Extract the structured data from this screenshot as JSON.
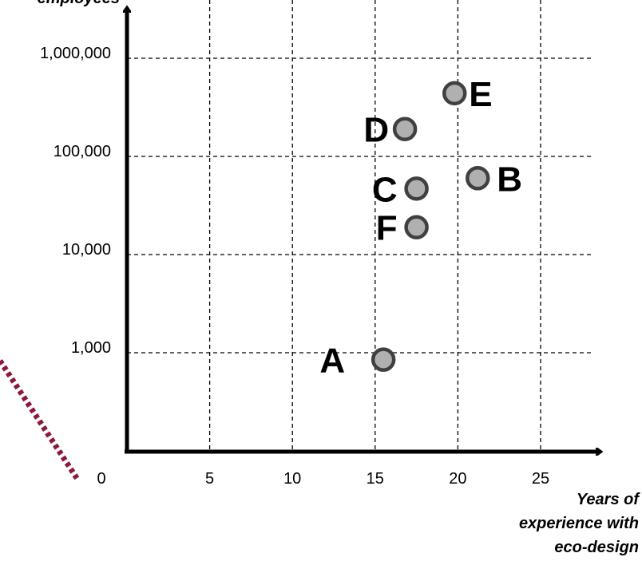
{
  "chart_data": {
    "type": "scatter",
    "title": "",
    "xlabel_lines": [
      "Years of",
      "experience with",
      "eco-design"
    ],
    "ylabel": "employees",
    "y_scale": "log",
    "x_ticks": [
      "0",
      "5",
      "10",
      "15",
      "20",
      "25"
    ],
    "y_ticks": [
      "1,000",
      "10,000",
      "100,000",
      "1,000,000"
    ],
    "xlim": [
      0,
      28
    ],
    "grid": true,
    "points": [
      {
        "label": "A",
        "x": 15.5,
        "y": 850
      },
      {
        "label": "B",
        "x": 21.2,
        "y": 60000
      },
      {
        "label": "C",
        "x": 17.5,
        "y": 47000
      },
      {
        "label": "D",
        "x": 16.8,
        "y": 190000
      },
      {
        "label": "E",
        "x": 19.8,
        "y": 440000
      },
      {
        "label": "F",
        "x": 17.5,
        "y": 19000
      }
    ],
    "colors": {
      "marker_fill": "#b0b0b0",
      "marker_stroke": "#404040",
      "decor_dots": "#8b1a3a"
    }
  }
}
